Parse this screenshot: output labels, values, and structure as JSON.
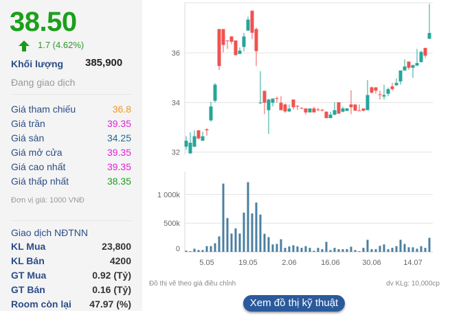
{
  "quote": {
    "price": "38.50",
    "change": "1.7 (4.62%)",
    "direction_icon": "arrow-up-icon",
    "volume_label": "Khối lượng",
    "volume": "385,900",
    "status": "Đang giao dịch"
  },
  "prices": [
    {
      "label": "Giá tham chiếu",
      "value": "36.8",
      "color": "#f7941d"
    },
    {
      "label": "Giá trần",
      "value": "39.35",
      "color": "#e020d8"
    },
    {
      "label": "Giá sàn",
      "value": "34.25",
      "color": "#1b6a9a"
    },
    {
      "label": "Giá mở cửa",
      "value": "39.35",
      "color": "#e020d8"
    },
    {
      "label": "Giá cao nhất",
      "value": "39.35",
      "color": "#e020d8"
    },
    {
      "label": "Giá thấp nhất",
      "value": "38.35",
      "color": "#1aa01a"
    }
  ],
  "unit_note": "Đơn vị giá: 1000 VNĐ",
  "foreign": {
    "title": "Giao dịch NĐTNN",
    "rows": [
      {
        "label": "KL Mua",
        "value": "23,800"
      },
      {
        "label": "KL Bán",
        "value": "4200"
      },
      {
        "label": "GT Mua",
        "value": "0.92 (Tỷ)"
      },
      {
        "label": "GT Bán",
        "value": "0.16 (Tỷ)"
      },
      {
        "label": "Room còn lại",
        "value": "47.97 (%)"
      }
    ]
  },
  "chart_data": [
    {
      "type": "candlestick",
      "ylim": [
        31.88,
        38.02
      ],
      "yticks": [
        32,
        34,
        36
      ],
      "grid": true,
      "up_color": "#26a69a",
      "down_color": "#ef5350",
      "ohlc": [
        [
          32.22,
          32.46,
          32.64,
          32.09
        ],
        [
          31.95,
          32.38,
          32.8,
          31.93
        ],
        [
          32.22,
          32.64,
          32.88,
          32.2
        ],
        [
          32.88,
          32.55,
          32.88,
          32.51
        ],
        [
          32.46,
          32.64,
          32.82,
          32.46
        ],
        [
          32.92,
          32.88,
          32.96,
          32.66
        ],
        [
          33.28,
          33.84,
          34.03,
          33.23
        ],
        [
          34.07,
          34.72,
          34.78,
          34.0
        ],
        [
          36.96,
          35.47,
          36.96,
          35.31
        ],
        [
          36.96,
          36.32,
          36.96,
          36.02
        ],
        [
          36.5,
          36.48,
          36.5,
          36.16
        ],
        [
          36.66,
          36.45,
          36.68,
          36.35
        ],
        [
          36.5,
          35.91,
          36.5,
          35.89
        ],
        [
          35.96,
          36.09,
          36.22,
          35.95
        ],
        [
          36.24,
          36.66,
          36.81,
          36.06
        ],
        [
          36.9,
          37.34,
          37.46,
          36.88
        ],
        [
          37.7,
          36.81,
          37.7,
          36.55
        ],
        [
          36.96,
          36.07,
          37.02,
          35.47
        ],
        [
          33.97,
          34.0,
          35.26,
          33.94
        ],
        [
          34.47,
          33.99,
          34.47,
          33.53
        ],
        [
          33.69,
          34.12,
          34.14,
          32.73
        ],
        [
          33.99,
          34.16,
          34.16,
          33.84
        ],
        [
          34.17,
          34.16,
          34.24,
          33.99
        ],
        [
          33.99,
          33.69,
          34.25,
          33.69
        ],
        [
          33.92,
          33.64,
          33.96,
          33.58
        ],
        [
          33.64,
          33.75,
          33.92,
          33.62
        ],
        [
          34.12,
          33.81,
          34.12,
          33.72
        ],
        [
          33.86,
          33.84,
          33.9,
          33.7
        ],
        [
          33.78,
          33.77,
          33.81,
          33.74
        ],
        [
          33.76,
          33.6,
          33.76,
          33.52
        ],
        [
          33.6,
          33.76,
          33.76,
          33.6
        ],
        [
          33.76,
          33.6,
          33.83,
          33.6
        ],
        [
          33.72,
          33.7,
          33.78,
          33.65
        ],
        [
          33.7,
          33.68,
          33.75,
          33.64
        ],
        [
          33.63,
          33.37,
          33.64,
          33.37
        ],
        [
          33.37,
          33.51,
          33.63,
          33.37
        ],
        [
          33.51,
          33.69,
          34.01,
          33.48
        ],
        [
          34.01,
          33.55,
          34.01,
          33.55
        ],
        [
          33.63,
          33.76,
          33.83,
          33.6
        ],
        [
          33.66,
          33.76,
          33.77,
          33.66
        ],
        [
          33.92,
          33.81,
          34.49,
          33.53
        ],
        [
          33.92,
          33.67,
          33.92,
          33.67
        ],
        [
          33.68,
          33.67,
          33.92,
          33.67
        ],
        [
          33.76,
          33.67,
          33.76,
          33.64
        ],
        [
          33.69,
          34.3,
          34.9,
          33.69
        ],
        [
          34.61,
          34.4,
          34.65,
          34.36
        ],
        [
          34.61,
          34.48,
          34.61,
          34.36
        ],
        [
          34.33,
          34.32,
          34.48,
          34.12
        ],
        [
          34.24,
          34.3,
          34.72,
          34.12
        ],
        [
          34.35,
          34.54,
          34.6,
          34.26
        ],
        [
          34.65,
          34.54,
          34.79,
          34.48
        ],
        [
          34.69,
          34.79,
          34.97,
          34.69
        ],
        [
          34.85,
          35.29,
          35.29,
          34.72
        ],
        [
          35.29,
          35.45,
          35.74,
          35.29
        ],
        [
          35.65,
          35.4,
          35.65,
          35.32
        ],
        [
          35.4,
          35.51,
          35.51,
          34.99
        ],
        [
          35.49,
          35.59,
          36.16,
          35.47
        ],
        [
          35.63,
          36.04,
          36.09,
          35.61
        ],
        [
          36.2,
          35.89,
          36.2,
          35.79
        ],
        [
          36.57,
          36.8,
          37.98,
          36.55
        ]
      ]
    },
    {
      "type": "bar",
      "ylim": [
        0,
        1400000
      ],
      "yticks": [
        {
          "v": 0,
          "label": "0"
        },
        {
          "v": 500000,
          "label": "500k"
        },
        {
          "v": 1000000,
          "label": "1 000k"
        }
      ],
      "color": "#4a7fa0",
      "values": [
        20000,
        12000,
        55000,
        32000,
        32000,
        100000,
        100000,
        150000,
        270000,
        1190000,
        590000,
        320000,
        410000,
        320000,
        685000,
        1215000,
        670000,
        860000,
        650000,
        315000,
        257000,
        130000,
        138000,
        220000,
        70000,
        95000,
        115000,
        95000,
        70000,
        100000,
        70000,
        20000,
        70000,
        47000,
        175000,
        32000,
        70000,
        47000,
        47000,
        47000,
        90000,
        32000,
        12000,
        70000,
        210000,
        47000,
        47000,
        105000,
        130000,
        47000,
        70000,
        100000,
        210000,
        138000,
        80000,
        80000,
        55000,
        100000,
        70000,
        245000
      ],
      "xticks": [
        {
          "i": 5,
          "label": "5.05"
        },
        {
          "i": 15,
          "label": "19.05"
        },
        {
          "i": 25,
          "label": "2.06"
        },
        {
          "i": 35,
          "label": "16.06"
        },
        {
          "i": 45,
          "label": "30.06"
        },
        {
          "i": 55,
          "label": "14.07"
        }
      ]
    }
  ],
  "footer": {
    "note": "Đồ thị vẽ theo giá điều chỉnh",
    "vol_unit": "dv KLg: 10,000cp",
    "button": "Xem đồ thị kỹ thuật"
  }
}
